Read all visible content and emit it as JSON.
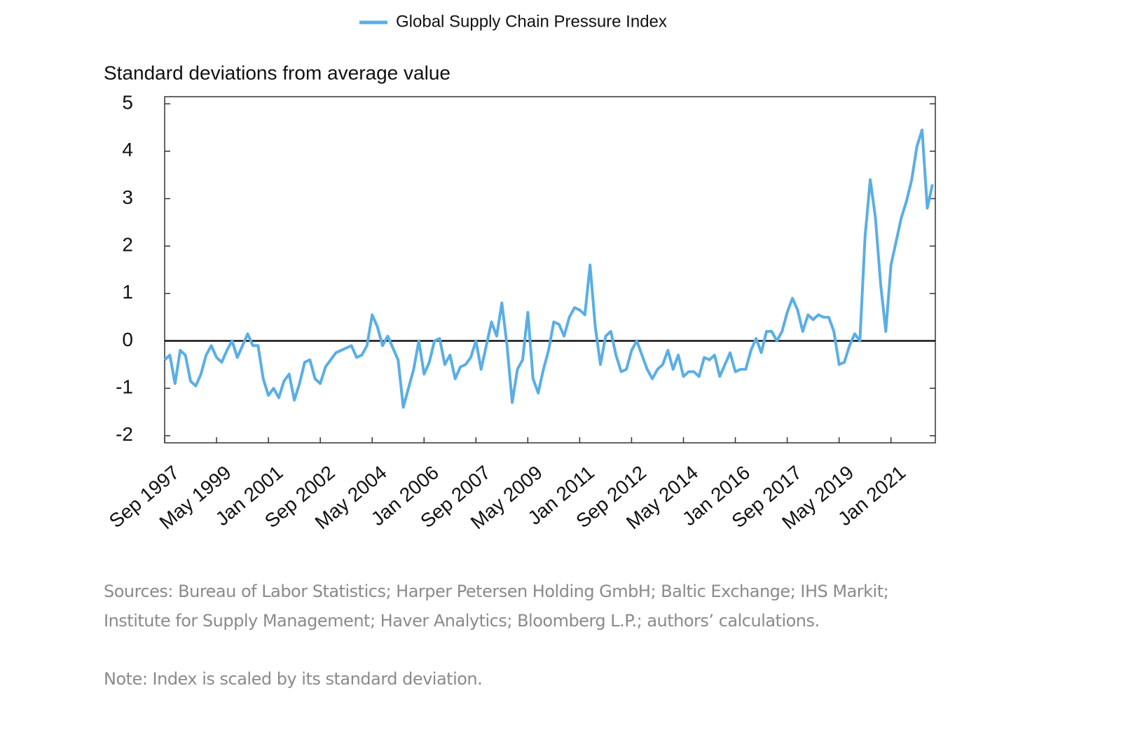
{
  "chart_data": {
    "type": "line",
    "y_axis_label": "Standard deviations from average value",
    "categories": [
      "Sep 1997",
      null,
      null,
      null,
      null,
      null,
      null,
      null,
      null,
      null,
      "May 1999",
      null,
      null,
      null,
      null,
      null,
      null,
      null,
      null,
      null,
      "Jan 2001",
      null,
      null,
      null,
      null,
      null,
      null,
      null,
      null,
      null,
      "Sep 2002",
      null,
      null,
      null,
      null,
      null,
      null,
      null,
      null,
      null,
      "May 2004",
      null,
      null,
      null,
      null,
      null,
      null,
      null,
      null,
      null,
      "Jan 2006",
      null,
      null,
      null,
      null,
      null,
      null,
      null,
      null,
      null,
      "Sep 2007",
      null,
      null,
      null,
      null,
      null,
      null,
      null,
      null,
      null,
      "May 2009",
      null,
      null,
      null,
      null,
      null,
      null,
      null,
      null,
      null,
      "Jan 2011",
      null,
      null,
      null,
      null,
      null,
      null,
      null,
      null,
      null,
      "Sep 2012",
      null,
      null,
      null,
      null,
      null,
      null,
      null,
      null,
      null,
      "May 2014",
      null,
      null,
      null,
      null,
      null,
      null,
      null,
      null,
      null,
      "Jan 2016",
      null,
      null,
      null,
      null,
      null,
      null,
      null,
      null,
      null,
      "Sep 2017",
      null,
      null,
      null,
      null,
      null,
      null,
      null,
      null,
      null,
      "May 2019",
      null,
      null,
      null,
      null,
      null,
      null,
      null,
      null,
      null,
      "Jan 2021",
      null,
      null,
      null,
      null,
      null,
      null,
      null,
      null
    ],
    "series": [
      {
        "name": "Global Supply Chain Pressure Index",
        "color": "#5aaee6",
        "values": [
          -0.4,
          -0.3,
          -0.9,
          -0.2,
          -0.3,
          -0.85,
          -0.95,
          -0.7,
          -0.3,
          -0.1,
          -0.35,
          -0.45,
          -0.2,
          0.0,
          -0.35,
          -0.1,
          0.15,
          -0.1,
          -0.1,
          -0.8,
          -1.15,
          -1.0,
          -1.2,
          -0.85,
          -0.7,
          -1.25,
          -0.9,
          -0.45,
          -0.4,
          -0.8,
          -0.9,
          -0.55,
          -0.4,
          -0.25,
          -0.2,
          -0.15,
          -0.1,
          -0.35,
          -0.3,
          -0.1,
          0.55,
          0.3,
          -0.1,
          0.1,
          -0.15,
          -0.4,
          -1.4,
          -1.0,
          -0.6,
          0.0,
          -0.7,
          -0.45,
          0.0,
          0.05,
          -0.5,
          -0.3,
          -0.8,
          -0.55,
          -0.5,
          -0.35,
          0.0,
          -0.6,
          -0.1,
          0.4,
          0.1,
          0.8,
          -0.1,
          -1.3,
          -0.6,
          -0.4,
          0.6,
          -0.8,
          -1.1,
          -0.6,
          -0.2,
          0.4,
          0.35,
          0.1,
          0.5,
          0.7,
          0.65,
          0.55,
          1.6,
          0.3,
          -0.5,
          0.1,
          0.2,
          -0.3,
          -0.65,
          -0.6,
          -0.2,
          0.0,
          -0.3,
          -0.6,
          -0.8,
          -0.6,
          -0.5,
          -0.2,
          -0.6,
          -0.3,
          -0.75,
          -0.65,
          -0.65,
          -0.75,
          -0.35,
          -0.4,
          -0.3,
          -0.75,
          -0.5,
          -0.25,
          -0.65,
          -0.6,
          -0.6,
          -0.2,
          0.05,
          -0.25,
          0.2,
          0.2,
          0.0,
          0.2,
          0.6,
          0.9,
          0.65,
          0.2,
          0.55,
          0.45,
          0.55,
          0.5,
          0.5,
          0.2,
          -0.5,
          -0.45,
          -0.1,
          0.15,
          0.0,
          2.2,
          3.4,
          2.6,
          1.2,
          0.2,
          1.6,
          2.1,
          2.6,
          2.95,
          3.4,
          4.1,
          4.45,
          2.8,
          3.3
        ]
      }
    ],
    "ylim": [
      -2.15,
      5.15
    ],
    "yticks": [
      -2,
      -1,
      0,
      1,
      2,
      3,
      4,
      5
    ],
    "sources": [
      "Sources: Bureau of Labor Statistics; Harper Petersen Holding GmbH; Baltic Exchange; IHS Markit;",
      "Institute for Supply Management; Haver Analytics; Bloomberg L.P.; authors’ calculations."
    ],
    "note": "Note: Index is scaled by its standard deviation."
  }
}
